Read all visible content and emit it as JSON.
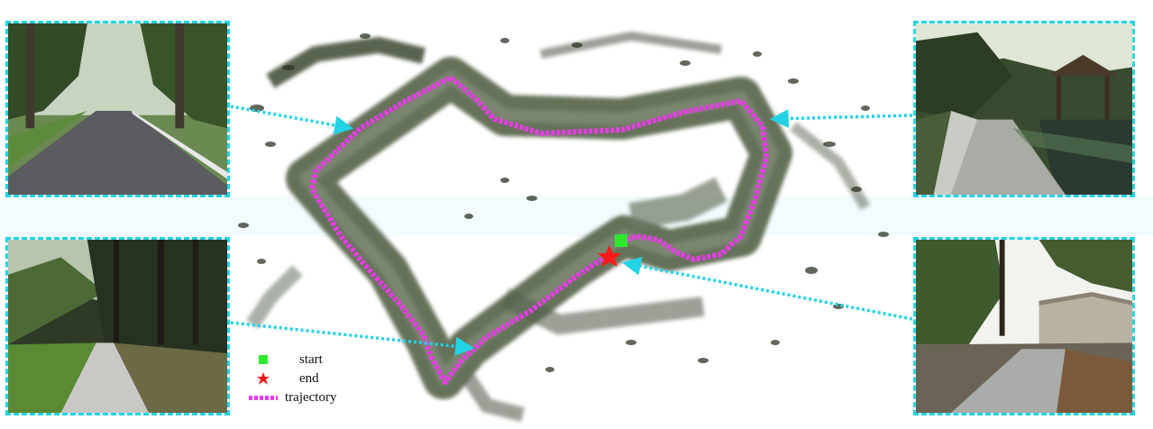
{
  "legend": {
    "start_label": "start",
    "end_label": "end",
    "trajectory_label": "trajectory"
  },
  "colors": {
    "trajectory": "#e83de8",
    "start_marker": "#2ee82e",
    "end_marker": "#ff1a1a",
    "callout_arrow": "#22d3e6",
    "frame_border": "#1fd5e3"
  },
  "views": [
    {
      "name": "road-view",
      "position": "top-left"
    },
    {
      "name": "bridge-pavilion-view",
      "position": "top-right"
    },
    {
      "name": "forest-path-view",
      "position": "bottom-left"
    },
    {
      "name": "greenhouse-path-view",
      "position": "bottom-right"
    }
  ]
}
